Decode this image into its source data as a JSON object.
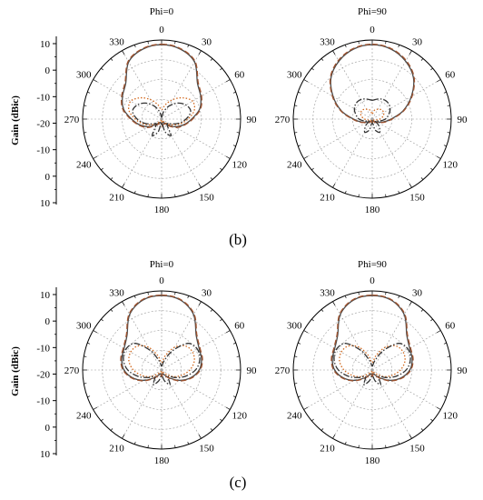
{
  "chart_data": [
    {
      "type": "polar-line",
      "panel": "b-left",
      "title": "Phi=0",
      "ylabel": "Gain (dBic)",
      "r_range": [
        -30,
        12
      ],
      "r_ticks": [
        "10",
        "0",
        "-10",
        "-20",
        "-10",
        "0",
        "10"
      ],
      "theta_ticks": [
        "0",
        "30",
        "60",
        "90",
        "120",
        "150",
        "180",
        "210",
        "240",
        "270",
        "300",
        "330"
      ],
      "series": [
        {
          "style": "solid",
          "color": "#4a4a4a",
          "angles": [
            0,
            15,
            30,
            45,
            60,
            75,
            90,
            105,
            120,
            135,
            150,
            165,
            180,
            195,
            210,
            225,
            240,
            255,
            270,
            285,
            300,
            315,
            330,
            345
          ],
          "values": [
            9.5,
            8.5,
            5,
            -3,
            -6,
            -9,
            -14,
            -18,
            -22,
            -26,
            -28,
            -28,
            -27,
            -28,
            -28,
            -26,
            -22,
            -18,
            -14,
            -9,
            -6,
            -3,
            5,
            8.5
          ]
        },
        {
          "style": "dash",
          "color": "#a0522d",
          "angles": [
            0,
            15,
            30,
            45,
            60,
            75,
            90,
            105,
            120,
            135,
            150,
            165,
            180,
            195,
            210,
            225,
            240,
            255,
            270,
            285,
            300,
            315,
            330,
            345
          ],
          "values": [
            9.8,
            8.8,
            5.5,
            -2.5,
            -5.5,
            -8.5,
            -13.5,
            -17.5,
            -21,
            -25,
            -27,
            -27,
            -26,
            -27,
            -27,
            -25,
            -21,
            -17.5,
            -13.5,
            -8.5,
            -5.5,
            -2.5,
            5.5,
            8.8
          ]
        },
        {
          "style": "dot",
          "color": "#d2691e",
          "angles": [
            0,
            15,
            30,
            45,
            60,
            75,
            90,
            105,
            120,
            135,
            150,
            165,
            180,
            195,
            210,
            225,
            240,
            255,
            270,
            285,
            300,
            315,
            330,
            345
          ],
          "values": [
            -25,
            -22,
            -18,
            -14,
            -11,
            -12,
            -16,
            -20,
            -24,
            -27,
            -29,
            -29,
            -28,
            -29,
            -29,
            -27,
            -24,
            -20,
            -16,
            -12,
            -11,
            -14,
            -18,
            -22
          ]
        },
        {
          "style": "dashdot",
          "color": "#333333",
          "angles": [
            0,
            15,
            30,
            45,
            60,
            75,
            90,
            105,
            120,
            135,
            150,
            165,
            180,
            195,
            210,
            225,
            240,
            255,
            270,
            285,
            300,
            315,
            330,
            345
          ],
          "values": [
            -29,
            -26,
            -22,
            -18,
            -15,
            -14,
            -17,
            -21,
            -25,
            -26,
            -20,
            -23,
            -28,
            -23,
            -20,
            -26,
            -25,
            -21,
            -17,
            -14,
            -15,
            -18,
            -22,
            -26
          ]
        }
      ]
    },
    {
      "type": "polar-line",
      "panel": "b-right",
      "title": "Phi=90",
      "r_range": [
        -30,
        12
      ],
      "theta_ticks": [
        "0",
        "30",
        "60",
        "90",
        "120",
        "150",
        "180",
        "210",
        "240",
        "270",
        "300",
        "330"
      ],
      "series": [
        {
          "style": "solid",
          "color": "#4a4a4a",
          "angles": [
            0,
            15,
            30,
            45,
            60,
            75,
            90,
            105,
            120,
            135,
            150,
            165,
            180,
            195,
            210,
            225,
            240,
            255,
            270,
            285,
            300,
            315,
            330,
            345
          ],
          "values": [
            9.5,
            8.5,
            5.5,
            1,
            -6,
            -13,
            -20,
            -24,
            -27,
            -28,
            -29,
            -29,
            -28,
            -29,
            -29,
            -28,
            -27,
            -24,
            -20,
            -13,
            -6,
            1,
            5.5,
            8.5
          ]
        },
        {
          "style": "dash",
          "color": "#a0522d",
          "angles": [
            0,
            15,
            30,
            45,
            60,
            75,
            90,
            105,
            120,
            135,
            150,
            165,
            180,
            195,
            210,
            225,
            240,
            255,
            270,
            285,
            300,
            315,
            330,
            345
          ],
          "values": [
            9.8,
            8.8,
            6,
            1.5,
            -5.5,
            -12.5,
            -19.5,
            -23.5,
            -26.5,
            -27.5,
            -28.5,
            -28.5,
            -27.5,
            -28.5,
            -28.5,
            -27.5,
            -26.5,
            -23.5,
            -19.5,
            -12.5,
            -5.5,
            1.5,
            6,
            8.8
          ]
        },
        {
          "style": "dot",
          "color": "#d2691e",
          "angles": [
            0,
            15,
            30,
            45,
            60,
            75,
            90,
            105,
            120,
            135,
            150,
            165,
            180,
            195,
            210,
            225,
            240,
            255,
            270,
            285,
            300,
            315,
            330,
            345
          ],
          "values": [
            -27,
            -25,
            -24,
            -23,
            -23,
            -24,
            -26,
            -28,
            -29,
            -29,
            -29,
            -29,
            -28,
            -29,
            -29,
            -29,
            -29,
            -28,
            -26,
            -24,
            -23,
            -23,
            -24,
            -25
          ]
        },
        {
          "style": "dashdot",
          "color": "#333333",
          "angles": [
            0,
            15,
            30,
            45,
            60,
            75,
            90,
            105,
            120,
            135,
            150,
            165,
            180,
            195,
            210,
            225,
            240,
            255,
            270,
            285,
            300,
            315,
            330,
            345
          ],
          "values": [
            -20,
            -19,
            -18,
            -18,
            -19,
            -21,
            -23,
            -26,
            -28,
            -25,
            -22,
            -24,
            -28,
            -24,
            -22,
            -25,
            -28,
            -26,
            -23,
            -21,
            -19,
            -18,
            -18,
            -19
          ]
        }
      ]
    },
    {
      "type": "polar-line",
      "panel": "c-left",
      "title": "Phi=0",
      "ylabel": "Gain (dBic)",
      "r_range": [
        -30,
        12
      ],
      "r_ticks": [
        "10",
        "0",
        "-10",
        "-20",
        "-10",
        "0",
        "10"
      ],
      "theta_ticks": [
        "0",
        "30",
        "60",
        "90",
        "120",
        "150",
        "180",
        "210",
        "240",
        "270",
        "300",
        "330"
      ],
      "series": [
        {
          "style": "solid",
          "color": "#4a4a4a",
          "angles": [
            0,
            15,
            30,
            45,
            60,
            75,
            90,
            105,
            120,
            135,
            150,
            165,
            180,
            195,
            210,
            225,
            240,
            255,
            270,
            285,
            300,
            315,
            330,
            345
          ],
          "values": [
            9.5,
            8.5,
            4,
            -4,
            -7,
            -8,
            -10,
            -14,
            -19,
            -24,
            -27,
            -28,
            -27,
            -28,
            -27,
            -24,
            -19,
            -14,
            -10,
            -8,
            -7,
            -4,
            4,
            8.5
          ]
        },
        {
          "style": "dash",
          "color": "#a0522d",
          "angles": [
            0,
            15,
            30,
            45,
            60,
            75,
            90,
            105,
            120,
            135,
            150,
            165,
            180,
            195,
            210,
            225,
            240,
            255,
            270,
            285,
            300,
            315,
            330,
            345
          ],
          "values": [
            9.8,
            8.8,
            4.5,
            -3.5,
            -6.5,
            -7.5,
            -9.5,
            -13.5,
            -18.5,
            -23.5,
            -26.5,
            -27.5,
            -26.5,
            -27.5,
            -26.5,
            -23.5,
            -18.5,
            -13.5,
            -9.5,
            -7.5,
            -6.5,
            -3.5,
            4.5,
            8.8
          ]
        },
        {
          "style": "dot",
          "color": "#d2691e",
          "angles": [
            0,
            15,
            30,
            45,
            60,
            75,
            90,
            105,
            120,
            135,
            150,
            165,
            180,
            195,
            210,
            225,
            240,
            255,
            270,
            285,
            300,
            315,
            330,
            345
          ],
          "values": [
            -26,
            -22,
            -16,
            -12,
            -11,
            -12,
            -15,
            -19,
            -23,
            -27,
            -29,
            -29,
            -28,
            -29,
            -29,
            -27,
            -23,
            -19,
            -15,
            -12,
            -11,
            -12,
            -16,
            -22
          ]
        },
        {
          "style": "dashdot",
          "color": "#333333",
          "angles": [
            0,
            15,
            30,
            45,
            60,
            75,
            90,
            105,
            120,
            135,
            150,
            165,
            180,
            195,
            210,
            225,
            240,
            255,
            270,
            285,
            300,
            315,
            330,
            345
          ],
          "values": [
            -28,
            -25,
            -18,
            -10,
            -8,
            -9,
            -12,
            -17,
            -22,
            -25,
            -21,
            -24,
            -27,
            -24,
            -21,
            -25,
            -22,
            -17,
            -12,
            -9,
            -8,
            -10,
            -18,
            -25
          ]
        }
      ]
    },
    {
      "type": "polar-line",
      "panel": "c-right",
      "title": "Phi=90",
      "r_range": [
        -30,
        12
      ],
      "theta_ticks": [
        "0",
        "30",
        "60",
        "90",
        "120",
        "150",
        "180",
        "210",
        "240",
        "270",
        "300",
        "330"
      ],
      "series": [
        {
          "style": "solid",
          "color": "#4a4a4a",
          "angles": [
            0,
            15,
            30,
            45,
            60,
            75,
            90,
            105,
            120,
            135,
            150,
            165,
            180,
            195,
            210,
            225,
            240,
            255,
            270,
            285,
            300,
            315,
            330,
            345
          ],
          "values": [
            9.5,
            8.5,
            4,
            -4,
            -7,
            -8,
            -10,
            -14,
            -19,
            -24,
            -27,
            -28,
            -27,
            -28,
            -27,
            -24,
            -19,
            -14,
            -10,
            -8,
            -7,
            -4,
            4,
            8.5
          ]
        },
        {
          "style": "dash",
          "color": "#a0522d",
          "angles": [
            0,
            15,
            30,
            45,
            60,
            75,
            90,
            105,
            120,
            135,
            150,
            165,
            180,
            195,
            210,
            225,
            240,
            255,
            270,
            285,
            300,
            315,
            330,
            345
          ],
          "values": [
            9.8,
            8.8,
            4.5,
            -3.5,
            -6.5,
            -7.5,
            -9.5,
            -13.5,
            -18.5,
            -23.5,
            -26.5,
            -27.5,
            -26.5,
            -27.5,
            -26.5,
            -23.5,
            -18.5,
            -13.5,
            -9.5,
            -7.5,
            -6.5,
            -3.5,
            4.5,
            8.8
          ]
        },
        {
          "style": "dot",
          "color": "#d2691e",
          "angles": [
            0,
            15,
            30,
            45,
            60,
            75,
            90,
            105,
            120,
            135,
            150,
            165,
            180,
            195,
            210,
            225,
            240,
            255,
            270,
            285,
            300,
            315,
            330,
            345
          ],
          "values": [
            -26,
            -22,
            -16,
            -12,
            -11,
            -12,
            -15,
            -19,
            -23,
            -27,
            -29,
            -29,
            -28,
            -29,
            -29,
            -27,
            -23,
            -19,
            -15,
            -12,
            -11,
            -12,
            -16,
            -22
          ]
        },
        {
          "style": "dashdot",
          "color": "#333333",
          "angles": [
            0,
            15,
            30,
            45,
            60,
            75,
            90,
            105,
            120,
            135,
            150,
            165,
            180,
            195,
            210,
            225,
            240,
            255,
            270,
            285,
            300,
            315,
            330,
            345
          ],
          "values": [
            -28,
            -25,
            -18,
            -10,
            -8,
            -9,
            -12,
            -17,
            -22,
            -25,
            -21,
            -24,
            -27,
            -24,
            -21,
            -25,
            -22,
            -17,
            -12,
            -9,
            -8,
            -10,
            -18,
            -25
          ]
        }
      ]
    }
  ],
  "labels": {
    "b": "(b)",
    "c": "(c)"
  }
}
